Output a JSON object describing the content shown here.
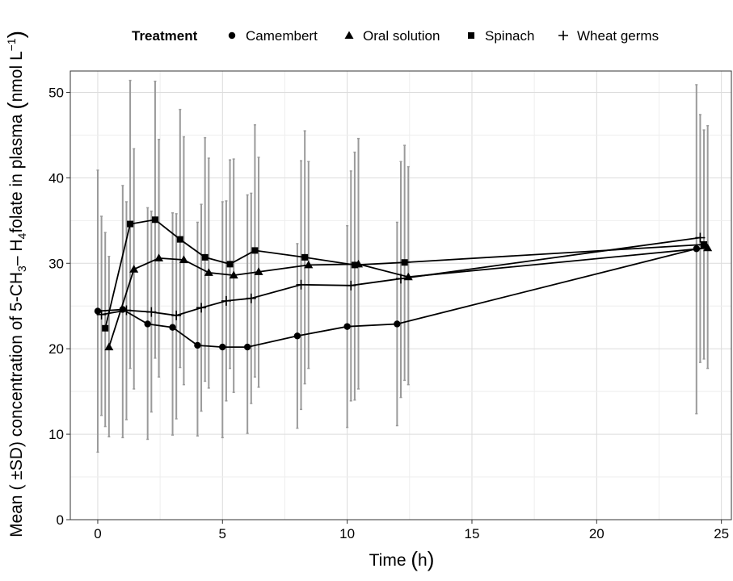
{
  "chart_data": {
    "type": "line",
    "title": "",
    "xlabel": "Time (h)",
    "ylabel": "Mean ( ±SD) concentration of 5-CH3- H4folate in plasma (nmol L-1)",
    "ylabel_parts": {
      "pre1": "Mean ( ±SD) concentration of 5-CH",
      "sub1": "3",
      "pre2": "– H",
      "sub2": "4",
      "pre3": "folate in plasma ",
      "paren_open": "(",
      "unit": "nmol L",
      "sup": "−1",
      "paren_close": ")"
    },
    "xlabel_parts": {
      "text": "Time ",
      "paren_open": "(",
      "unit": "h",
      "paren_close": ")"
    },
    "xlim": [
      -1.1,
      25.4
    ],
    "ylim": [
      0,
      52.5
    ],
    "x_ticks": [
      0,
      5,
      10,
      15,
      20,
      25
    ],
    "y_ticks": [
      0,
      10,
      20,
      30,
      40,
      50
    ],
    "grid": true,
    "legend": {
      "title": "Treatment",
      "position": "top",
      "entries": [
        {
          "name": "Camembert",
          "shape": "circle"
        },
        {
          "name": "Oral solution",
          "shape": "triangle"
        },
        {
          "name": "Spinach",
          "shape": "square"
        },
        {
          "name": "Wheat germs",
          "shape": "plus"
        }
      ]
    },
    "series": [
      {
        "name": "Camembert",
        "shape": "circle",
        "x": [
          0,
          1,
          2,
          3,
          4,
          5,
          6,
          8,
          10,
          12,
          24
        ],
        "y": [
          24.4,
          24.6,
          22.9,
          22.5,
          20.4,
          20.2,
          20.2,
          21.5,
          22.6,
          22.9,
          31.7
        ],
        "sd_low": [
          7.9,
          9.6,
          9.4,
          9.9,
          9.8,
          9.6,
          10.1,
          10.7,
          10.8,
          11.0,
          12.4
        ],
        "sd_high": [
          40.9,
          39.1,
          36.5,
          35.9,
          34.8,
          37.2,
          38.0,
          32.3,
          34.4,
          34.8,
          50.9
        ]
      },
      {
        "name": "Oral solution",
        "shape": "triangle",
        "x": [
          0.45,
          1.45,
          2.45,
          3.45,
          4.45,
          5.45,
          6.45,
          8.45,
          10.45,
          12.45,
          24.45
        ],
        "y": [
          20.2,
          29.3,
          30.6,
          30.4,
          28.9,
          28.6,
          29.0,
          29.8,
          29.9,
          28.4,
          31.8
        ],
        "sd_low": [
          9.7,
          15.3,
          16.7,
          15.8,
          15.4,
          14.9,
          15.5,
          17.7,
          15.3,
          15.8,
          17.7
        ],
        "sd_high": [
          30.8,
          43.4,
          44.5,
          44.8,
          42.3,
          42.2,
          42.4,
          41.9,
          44.6,
          41.3,
          46.1
        ]
      },
      {
        "name": "Spinach",
        "shape": "square",
        "x": [
          0.3,
          1.3,
          2.3,
          3.3,
          4.3,
          5.3,
          6.3,
          8.3,
          10.3,
          12.3,
          24.3
        ],
        "y": [
          22.4,
          34.6,
          35.1,
          32.8,
          30.7,
          29.9,
          31.5,
          30.7,
          29.8,
          30.1,
          32.2
        ],
        "sd_low": [
          10.9,
          17.7,
          18.9,
          17.8,
          16.2,
          17.7,
          16.7,
          15.9,
          14.0,
          16.3,
          18.8
        ],
        "sd_high": [
          33.6,
          51.4,
          51.3,
          48.0,
          44.7,
          42.1,
          46.2,
          45.5,
          43.0,
          43.8,
          45.6
        ]
      },
      {
        "name": "Wheat germs",
        "shape": "plus",
        "x": [
          0.15,
          1.15,
          2.15,
          3.15,
          4.15,
          5.15,
          6.15,
          8.15,
          10.15,
          12.15,
          24.15
        ],
        "y": [
          24.0,
          24.5,
          24.3,
          23.9,
          24.8,
          25.6,
          25.9,
          27.5,
          27.4,
          28.2,
          33.0
        ],
        "sd_low": [
          12.2,
          11.7,
          12.6,
          11.8,
          12.7,
          13.9,
          13.6,
          12.9,
          13.9,
          14.3,
          18.4
        ],
        "sd_high": [
          35.5,
          37.2,
          36.1,
          35.8,
          36.9,
          37.3,
          38.2,
          42.0,
          40.8,
          41.9,
          47.4
        ]
      }
    ]
  }
}
